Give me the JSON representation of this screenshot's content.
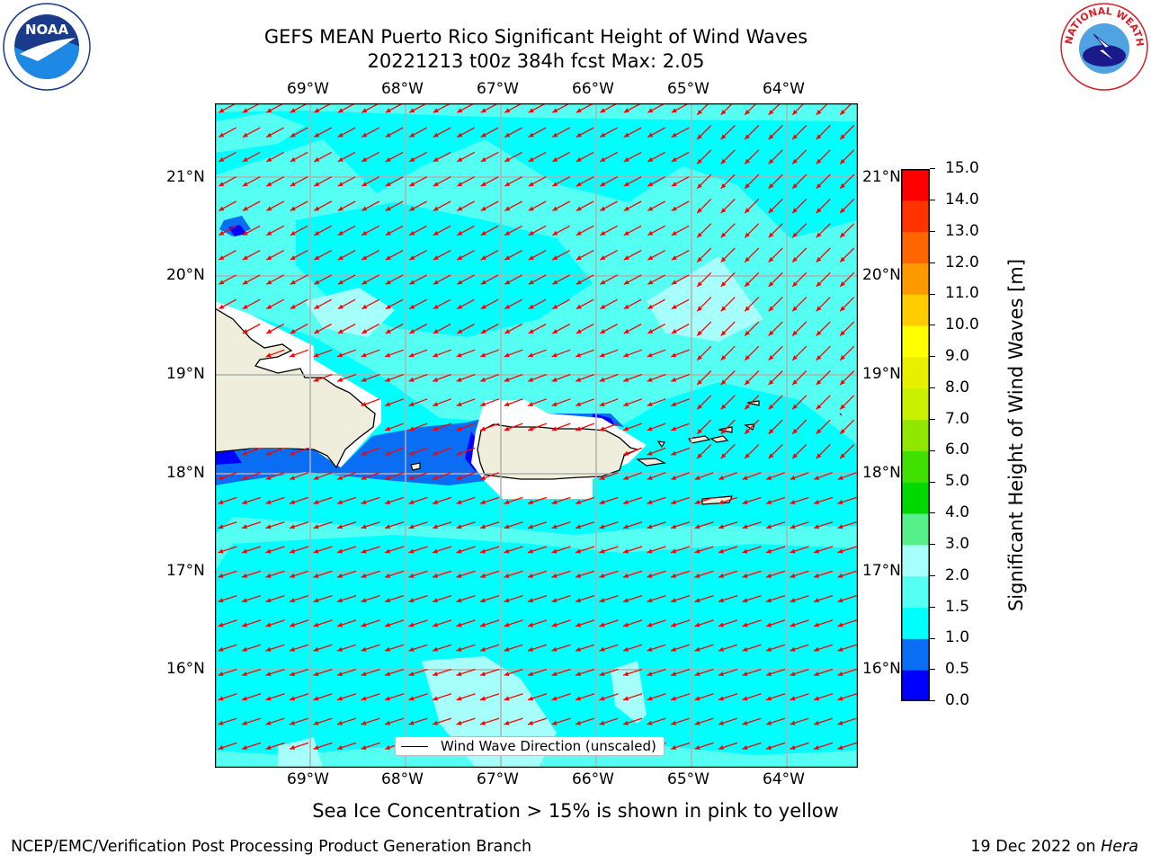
{
  "header": {
    "title_line1": "GEFS MEAN Puerto Rico Significant Height of Wind Waves",
    "title_line2": "20221213 t00z 384h fcst   Max: 2.05"
  },
  "logos": {
    "left": {
      "name": "NOAA",
      "ring_text": "NATIONAL OCEANIC AND ATMOSPHERIC ADMINISTRATION · U.S. DEPARTMENT OF COMMERCE",
      "color": "#1a3a8a"
    },
    "right": {
      "name": "NATIONAL WEATHER SERVICE",
      "color": "#d61f26"
    }
  },
  "map": {
    "lon_labels": [
      "69°W",
      "68°W",
      "67°W",
      "66°W",
      "65°W",
      "64°W"
    ],
    "lat_labels": [
      "21°N",
      "20°N",
      "19°N",
      "18°N",
      "17°N",
      "16°N"
    ],
    "legend": "Wind Wave Direction (unscaled)",
    "arrow_color": "#ff0000",
    "land_color": "#efeedd",
    "background_color": "#00ffff"
  },
  "colorbar": {
    "label": "Significant Height of Wind Waves [m]",
    "ticks": [
      "0.0",
      "0.5",
      "1.0",
      "1.5",
      "2.0",
      "3.0",
      "4.0",
      "5.0",
      "6.0",
      "7.0",
      "8.0",
      "9.0",
      "10.0",
      "11.0",
      "12.0",
      "13.0",
      "14.0",
      "15.0"
    ],
    "colors": [
      "#0000ff",
      "#0a6ef5",
      "#00ffff",
      "#55fff2",
      "#a6fffa",
      "#55f08a",
      "#00d800",
      "#40e000",
      "#90e800",
      "#c8f000",
      "#e8f000",
      "#ffff00",
      "#ffcc00",
      "#ff9900",
      "#ff6600",
      "#ff3300",
      "#ff0000"
    ]
  },
  "note": "Sea Ice Concentration > 15% is shown in pink to yellow",
  "footer": {
    "left": "NCEP/EMC/Verification Post Processing Product Generation Branch",
    "right_prefix": "19 Dec 2022 on ",
    "right_host": "Hera"
  }
}
